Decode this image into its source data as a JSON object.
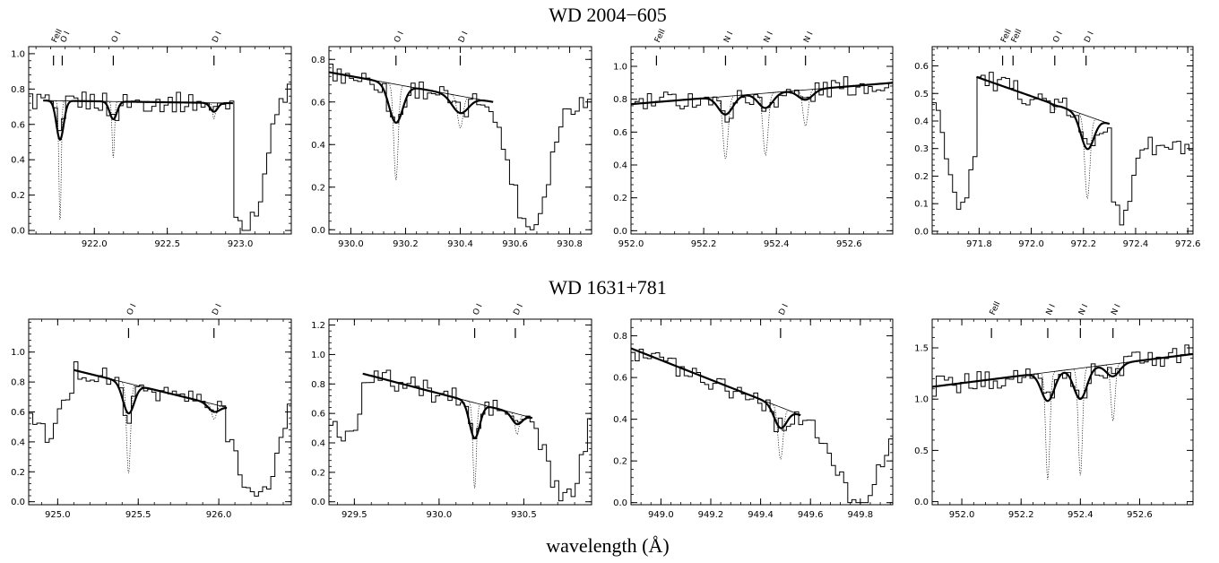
{
  "figure": {
    "row_titles": [
      "WD 2004−605",
      "WD 1631+781"
    ],
    "xlabel": "wavelength (Å)"
  },
  "chart_data": [
    {
      "type": "line",
      "row": 0,
      "col": 0,
      "xlim": [
        921.55,
        923.35
      ],
      "ylim": [
        -0.02,
        1.04
      ],
      "xticks": [
        922.0,
        922.5,
        923.0
      ],
      "xtick_labels": [
        "922.0",
        "922.5",
        "923.0"
      ],
      "yticks": [
        0.0,
        0.2,
        0.4,
        0.6,
        0.8,
        1.0
      ],
      "ytick_labels": [
        "0.0",
        "0.2",
        "0.4",
        "0.6",
        "0.8",
        "1.0"
      ],
      "lines": [
        {
          "label": "FeII",
          "x": 921.72
        },
        {
          "label": "O I",
          "x": 921.78
        },
        {
          "label": "O I",
          "x": 922.13
        },
        {
          "label": "D I",
          "x": 922.82
        }
      ],
      "continuum": {
        "x": [
          921.65,
          922.95
        ],
        "y": [
          0.735,
          0.72
        ]
      },
      "fit_range": [
        921.65,
        922.95
      ],
      "absorption": [
        {
          "center": 921.765,
          "depth": 0.22,
          "width": 0.025,
          "model_depth": 0.68,
          "model_width": 0.008
        },
        {
          "center": 922.13,
          "depth": 0.1,
          "width": 0.025,
          "model_depth": 0.32,
          "model_width": 0.008
        },
        {
          "center": 922.82,
          "depth": 0.05,
          "width": 0.025,
          "model_depth": 0.09,
          "model_width": 0.01
        }
      ],
      "edges": {
        "left": {
          "x": 921.55,
          "y": 0.8
        },
        "right": {
          "x": 923.0,
          "y": 0.0
        },
        "right_center": 923.05,
        "right_halfwidth": 0.13,
        "right_end": 0.82
      }
    },
    {
      "type": "line",
      "row": 0,
      "col": 1,
      "xlim": [
        929.92,
        930.88
      ],
      "ylim": [
        -0.02,
        0.86
      ],
      "xticks": [
        930.0,
        930.2,
        930.4,
        930.6,
        930.8
      ],
      "xtick_labels": [
        "930.0",
        "930.2",
        "930.4",
        "930.6",
        "930.8"
      ],
      "yticks": [
        0.0,
        0.2,
        0.4,
        0.6,
        0.8
      ],
      "ytick_labels": [
        "0.0",
        "0.2",
        "0.4",
        "0.6",
        "0.8"
      ],
      "lines": [
        {
          "label": "O I",
          "x": 930.165
        },
        {
          "label": "D I",
          "x": 930.4
        }
      ],
      "continuum": {
        "x": [
          929.92,
          930.52
        ],
        "y": [
          0.74,
          0.6
        ]
      },
      "fit_range": [
        929.92,
        930.52
      ],
      "absorption": [
        {
          "center": 930.165,
          "depth": 0.18,
          "width": 0.025,
          "model_depth": 0.45,
          "model_width": 0.008
        },
        {
          "center": 930.4,
          "depth": 0.08,
          "width": 0.03,
          "model_depth": 0.15,
          "model_width": 0.01
        }
      ],
      "edges": {
        "left": {
          "x": 929.92,
          "y": 0.74
        },
        "right": {
          "x": 930.6,
          "y": 0.0
        },
        "right_center": 930.66,
        "right_halfwidth": 0.07,
        "right_end": 0.6
      }
    },
    {
      "type": "line",
      "row": 0,
      "col": 2,
      "xlim": [
        952.0,
        952.72
      ],
      "ylim": [
        -0.02,
        1.12
      ],
      "xticks": [
        952.0,
        952.2,
        952.4,
        952.6
      ],
      "xtick_labels": [
        "952.0",
        "952.2",
        "952.4",
        "952.6"
      ],
      "yticks": [
        0.0,
        0.2,
        0.4,
        0.6,
        0.8,
        1.0
      ],
      "ytick_labels": [
        "0.0",
        "0.2",
        "0.4",
        "0.6",
        "0.8",
        "1.0"
      ],
      "lines": [
        {
          "label": "FeII",
          "x": 952.07
        },
        {
          "label": "N I",
          "x": 952.26
        },
        {
          "label": "N I",
          "x": 952.37
        },
        {
          "label": "N I",
          "x": 952.48
        }
      ],
      "continuum": {
        "x": [
          952.0,
          952.72
        ],
        "y": [
          0.77,
          0.9
        ]
      },
      "fit_range": [
        952.0,
        952.72
      ],
      "absorption": [
        {
          "center": 952.26,
          "depth": 0.11,
          "width": 0.02,
          "model_depth": 0.38,
          "model_width": 0.007
        },
        {
          "center": 952.37,
          "depth": 0.09,
          "width": 0.02,
          "model_depth": 0.38,
          "model_width": 0.007
        },
        {
          "center": 952.48,
          "depth": 0.06,
          "width": 0.02,
          "model_depth": 0.22,
          "model_width": 0.007
        }
      ],
      "edges": null
    },
    {
      "type": "line",
      "row": 0,
      "col": 3,
      "xlim": [
        971.62,
        972.62
      ],
      "ylim": [
        -0.01,
        0.67
      ],
      "xticks": [
        971.8,
        972.0,
        972.2,
        972.4,
        972.6
      ],
      "xtick_labels": [
        "971.8",
        "972.0",
        "972.2",
        "972.4",
        "972.6"
      ],
      "yticks": [
        0.0,
        0.1,
        0.2,
        0.3,
        0.4,
        0.5,
        0.6
      ],
      "ytick_labels": [
        "0.0",
        "0.1",
        "0.2",
        "0.3",
        "0.4",
        "0.5",
        "0.6"
      ],
      "lines": [
        {
          "label": "FeII",
          "x": 971.89
        },
        {
          "label": "FeII",
          "x": 971.93
        },
        {
          "label": "O I",
          "x": 972.09
        },
        {
          "label": "D I",
          "x": 972.21
        }
      ],
      "continuum": {
        "x": [
          971.79,
          972.3
        ],
        "y": [
          0.56,
          0.39
        ]
      },
      "fit_range": [
        971.79,
        972.3
      ],
      "absorption": [
        {
          "center": 972.215,
          "depth": 0.12,
          "width": 0.025,
          "model_depth": 0.3,
          "model_width": 0.01
        },
        {
          "center": 972.09,
          "depth": 0.005,
          "width": 0.01,
          "model_depth": 0.02,
          "model_width": 0.005
        }
      ],
      "edges": {
        "left": {
          "x": 971.7,
          "y": 0.1,
          "center": 971.73,
          "halfwidth": 0.05,
          "start": 0.5
        },
        "right": {
          "x": 972.33,
          "y": 0.02
        },
        "right_center": 972.35,
        "right_halfwidth": 0.04,
        "right_end": 0.3
      }
    },
    {
      "type": "line",
      "row": 1,
      "col": 0,
      "xlim": [
        924.82,
        926.45
      ],
      "ylim": [
        -0.02,
        1.22
      ],
      "xticks": [
        925.0,
        925.5,
        926.0
      ],
      "xtick_labels": [
        "925.0",
        "925.5",
        "926.0"
      ],
      "yticks": [
        0.0,
        0.2,
        0.4,
        0.6,
        0.8,
        1.0
      ],
      "ytick_labels": [
        "0.0",
        "0.2",
        "0.4",
        "0.6",
        "0.8",
        "1.0"
      ],
      "lines": [
        {
          "label": "O I",
          "x": 925.44
        },
        {
          "label": "D I",
          "x": 925.97
        }
      ],
      "continuum": {
        "x": [
          925.1,
          926.05
        ],
        "y": [
          0.88,
          0.63
        ]
      },
      "fit_range": [
        925.1,
        926.05
      ],
      "absorption": [
        {
          "center": 925.44,
          "depth": 0.2,
          "width": 0.035,
          "model_depth": 0.6,
          "model_width": 0.012
        },
        {
          "center": 925.97,
          "depth": 0.05,
          "width": 0.035,
          "model_depth": 0.1,
          "model_width": 0.015
        }
      ],
      "edges": {
        "left": {
          "x": 924.9,
          "y": 0.45,
          "center": 924.93,
          "halfwidth": 0.1,
          "start": 0.85
        },
        "right": {
          "x": 926.2,
          "y": 0.0
        },
        "right_center": 926.25,
        "right_halfwidth": 0.12,
        "right_end": 0.8
      }
    },
    {
      "type": "line",
      "row": 1,
      "col": 1,
      "xlim": [
        929.35,
        930.9
      ],
      "ylim": [
        -0.02,
        1.24
      ],
      "xticks": [
        929.5,
        930.0,
        930.5
      ],
      "xtick_labels": [
        "929.5",
        "930.0",
        "930.5"
      ],
      "yticks": [
        0.0,
        0.2,
        0.4,
        0.6,
        0.8,
        1.0,
        1.2
      ],
      "ytick_labels": [
        "0.0",
        "0.2",
        "0.4",
        "0.6",
        "0.8",
        "1.0",
        "1.2"
      ],
      "lines": [
        {
          "label": "O I",
          "x": 930.21
        },
        {
          "label": "D I",
          "x": 930.45
        }
      ],
      "continuum": {
        "x": [
          929.55,
          930.55
        ],
        "y": [
          0.87,
          0.57
        ]
      },
      "fit_range": [
        929.55,
        930.55
      ],
      "absorption": [
        {
          "center": 930.21,
          "depth": 0.24,
          "width": 0.03,
          "model_depth": 0.58,
          "model_width": 0.01
        },
        {
          "center": 930.46,
          "depth": 0.07,
          "width": 0.03,
          "model_depth": 0.14,
          "model_width": 0.012
        }
      ],
      "edges": {
        "left": {
          "x": 929.4,
          "y": 0.45,
          "center": 929.44,
          "halfwidth": 0.1,
          "start": 1.0
        },
        "right": {
          "x": 930.7,
          "y": 0.0
        },
        "right_center": 930.75,
        "right_halfwidth": 0.1,
        "right_end": 0.75
      }
    },
    {
      "type": "line",
      "row": 1,
      "col": 2,
      "xlim": [
        948.88,
        949.93
      ],
      "ylim": [
        -0.01,
        0.88
      ],
      "xticks": [
        949.0,
        949.2,
        949.4,
        949.6,
        949.8
      ],
      "xtick_labels": [
        "949.0",
        "949.2",
        "949.4",
        "949.6",
        "949.8"
      ],
      "yticks": [
        0.0,
        0.2,
        0.4,
        0.6,
        0.8
      ],
      "ytick_labels": [
        "0.0",
        "0.2",
        "0.4",
        "0.6",
        "0.8"
      ],
      "lines": [
        {
          "label": "D I",
          "x": 949.48
        }
      ],
      "continuum": {
        "x": [
          948.88,
          949.56
        ],
        "y": [
          0.74,
          0.42
        ]
      },
      "fit_range": [
        948.88,
        949.56
      ],
      "absorption": [
        {
          "center": 949.48,
          "depth": 0.1,
          "width": 0.025,
          "model_depth": 0.25,
          "model_width": 0.01
        }
      ],
      "edges": {
        "left": {
          "x": 948.88,
          "y": 0.74
        },
        "right": {
          "x": 949.68,
          "y": 0.0
        },
        "right_center": 949.8,
        "right_halfwidth": 0.1,
        "right_end": 0.5
      }
    },
    {
      "type": "line",
      "row": 1,
      "col": 3,
      "xlim": [
        951.9,
        952.78
      ],
      "ylim": [
        -0.03,
        1.78
      ],
      "xticks": [
        952.0,
        952.2,
        952.4,
        952.6
      ],
      "xtick_labels": [
        "952.0",
        "952.2",
        "952.4",
        "952.6"
      ],
      "yticks": [
        0.0,
        0.5,
        1.0,
        1.5
      ],
      "ytick_labels": [
        "0.0",
        "0.5",
        "1.0",
        "1.5"
      ],
      "lines": [
        {
          "label": "FeII",
          "x": 952.1
        },
        {
          "label": "N I",
          "x": 952.29
        },
        {
          "label": "N I",
          "x": 952.4
        },
        {
          "label": "N I",
          "x": 952.51
        }
      ],
      "continuum": {
        "x": [
          951.9,
          952.78
        ],
        "y": [
          1.12,
          1.44
        ]
      },
      "fit_range": [
        951.9,
        952.78
      ],
      "absorption": [
        {
          "center": 952.29,
          "depth": 0.28,
          "width": 0.022,
          "model_depth": 1.05,
          "model_width": 0.007
        },
        {
          "center": 952.4,
          "depth": 0.3,
          "width": 0.022,
          "model_depth": 1.05,
          "model_width": 0.007
        },
        {
          "center": 952.51,
          "depth": 0.12,
          "width": 0.022,
          "model_depth": 0.55,
          "model_width": 0.007
        }
      ],
      "edges": null
    }
  ]
}
